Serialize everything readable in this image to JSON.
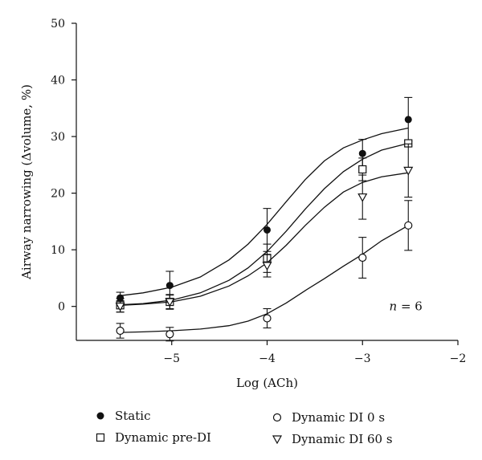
{
  "chart_data": {
    "type": "line",
    "xlabel": "Log (ACh)",
    "ylabel": "Airway narrowing (Δvolume, %)",
    "xlim": [
      -6,
      -2
    ],
    "ylim": [
      -6,
      50
    ],
    "xticks": [
      -5,
      -4,
      -3,
      -2
    ],
    "xtick_labels": [
      "−5",
      "−4",
      "−3",
      "−2"
    ],
    "yticks": [
      0,
      10,
      20,
      30,
      40,
      50
    ],
    "ytick_labels": [
      "0",
      "10",
      "20",
      "30",
      "40",
      "50"
    ],
    "annotation": {
      "italic": "n",
      "rest": " = 6",
      "x": -2.72,
      "y": 0
    },
    "series": [
      {
        "name": "Static",
        "marker": "filled-circle",
        "x": [
          -5.54,
          -5.02,
          -4.0,
          -3.0,
          -2.52
        ],
        "y": [
          1.5,
          3.7,
          13.5,
          27.0,
          33.0
        ],
        "err": [
          1.0,
          2.5,
          3.8,
          2.5,
          3.9
        ],
        "fit": [
          [
            -5.54,
            1.9
          ],
          [
            -5.3,
            2.4
          ],
          [
            -5.0,
            3.4
          ],
          [
            -4.7,
            5.2
          ],
          [
            -4.4,
            8.2
          ],
          [
            -4.2,
            11.0
          ],
          [
            -4.0,
            14.5
          ],
          [
            -3.8,
            18.5
          ],
          [
            -3.6,
            22.4
          ],
          [
            -3.4,
            25.7
          ],
          [
            -3.2,
            28.0
          ],
          [
            -3.0,
            29.4
          ],
          [
            -2.8,
            30.5
          ],
          [
            -2.52,
            31.5
          ]
        ]
      },
      {
        "name": "Dynamic pre-DI",
        "marker": "open-square",
        "x": [
          -5.54,
          -5.02,
          -4.0,
          -3.0,
          -2.52
        ],
        "y": [
          0.2,
          0.8,
          8.5,
          24.2,
          28.8
        ],
        "err": [
          1.2,
          1.3,
          2.5,
          2.0,
          0.5
        ],
        "fit": [
          [
            -5.54,
            0.3
          ],
          [
            -5.3,
            0.5
          ],
          [
            -5.0,
            1.1
          ],
          [
            -4.7,
            2.4
          ],
          [
            -4.4,
            4.6
          ],
          [
            -4.2,
            6.8
          ],
          [
            -4.0,
            9.7
          ],
          [
            -3.8,
            13.3
          ],
          [
            -3.6,
            17.2
          ],
          [
            -3.4,
            20.8
          ],
          [
            -3.2,
            23.8
          ],
          [
            -3.0,
            26.0
          ],
          [
            -2.8,
            27.6
          ],
          [
            -2.52,
            28.8
          ]
        ]
      },
      {
        "name": "Dynamic DI 0 s",
        "marker": "open-circle",
        "x": [
          -5.54,
          -5.02,
          -4.0,
          -3.0,
          -2.52
        ],
        "y": [
          -4.3,
          -4.9,
          -2.1,
          8.6,
          14.3
        ],
        "err": [
          1.3,
          1.2,
          1.7,
          3.6,
          4.4
        ],
        "fit": [
          [
            -5.54,
            -4.6
          ],
          [
            -5.3,
            -4.5
          ],
          [
            -5.0,
            -4.3
          ],
          [
            -4.7,
            -4.0
          ],
          [
            -4.4,
            -3.4
          ],
          [
            -4.2,
            -2.6
          ],
          [
            -4.0,
            -1.3
          ],
          [
            -3.8,
            0.6
          ],
          [
            -3.6,
            2.8
          ],
          [
            -3.4,
            4.9
          ],
          [
            -3.2,
            7.1
          ],
          [
            -3.0,
            9.2
          ],
          [
            -2.8,
            11.6
          ],
          [
            -2.52,
            14.3
          ]
        ]
      },
      {
        "name": "Dynamic DI 60 s",
        "marker": "open-triangle-down",
        "x": [
          -5.54,
          -5.02,
          -4.0,
          -3.0,
          -2.52
        ],
        "y": [
          0.0,
          0.8,
          7.2,
          19.3,
          24.0
        ],
        "err": [
          1.0,
          1.2,
          2.0,
          3.9,
          4.7
        ],
        "fit": [
          [
            -5.54,
            0.2
          ],
          [
            -5.3,
            0.4
          ],
          [
            -5.0,
            0.8
          ],
          [
            -4.7,
            1.8
          ],
          [
            -4.4,
            3.6
          ],
          [
            -4.2,
            5.4
          ],
          [
            -4.0,
            7.7
          ],
          [
            -3.8,
            10.8
          ],
          [
            -3.6,
            14.3
          ],
          [
            -3.4,
            17.5
          ],
          [
            -3.2,
            20.2
          ],
          [
            -3.0,
            21.9
          ],
          [
            -2.8,
            22.9
          ],
          [
            -2.52,
            23.6
          ]
        ]
      }
    ]
  }
}
